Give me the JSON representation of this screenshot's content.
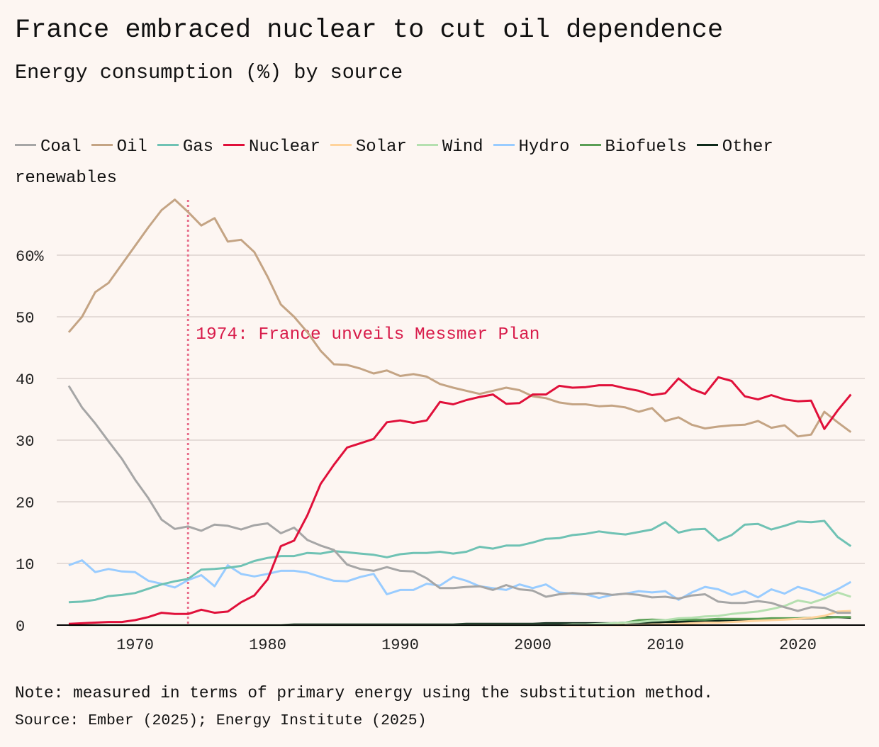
{
  "header": {
    "title": "France embraced nuclear to cut oil dependence",
    "subtitle": "Energy consumption (%) by source"
  },
  "footer": {
    "note": "Note: measured in terms of primary energy using the substitution method.",
    "source": "Source: Ember (2025); Energy Institute (2025)"
  },
  "chart_data": {
    "type": "line",
    "title": "France embraced nuclear to cut oil dependence",
    "subtitle": "Energy consumption (%) by source",
    "xlabel": "",
    "ylabel": "Energy consumption (%)",
    "xlim": [
      1965,
      2024
    ],
    "ylim": [
      0,
      70
    ],
    "grid": true,
    "legend_position": "top",
    "x_ticks": [
      1970,
      1980,
      1990,
      2000,
      2010,
      2020
    ],
    "x_tick_labels": [
      "1970",
      "1980",
      "1990",
      "2000",
      "2010",
      "2020"
    ],
    "y_ticks": [
      0,
      10,
      20,
      30,
      40,
      50,
      60
    ],
    "y_tick_labels": [
      "0",
      "10",
      "20",
      "30",
      "40",
      "50",
      "60%"
    ],
    "annotation": {
      "x": 1974,
      "text": "1974: France unveils Messmer Plan",
      "color": "#d81b4a",
      "line_color": "#e8718d"
    },
    "x_start": 1965,
    "series": [
      {
        "name": "Coal",
        "color": "#a6a6a6",
        "values": [
          38.8,
          35.3,
          32.7,
          29.8,
          27.0,
          23.6,
          20.6,
          17.1,
          15.6,
          16.0,
          15.3,
          16.3,
          16.1,
          15.5,
          16.2,
          16.5,
          14.9,
          15.8,
          13.8,
          12.9,
          12.2,
          9.8,
          9.1,
          8.8,
          9.4,
          8.8,
          8.7,
          7.6,
          6.0,
          6.0,
          6.2,
          6.3,
          5.7,
          6.5,
          5.8,
          5.6,
          4.6,
          5.0,
          5.2,
          5.0,
          5.2,
          4.9,
          5.1,
          4.9,
          4.5,
          4.6,
          4.3,
          4.8,
          5.0,
          3.8,
          3.6,
          3.6,
          3.9,
          3.6,
          2.9,
          2.3,
          2.9,
          2.8,
          2.0,
          2.0
        ]
      },
      {
        "name": "Oil",
        "color": "#c4a484",
        "values": [
          47.5,
          50.0,
          54.0,
          55.5,
          58.5,
          61.5,
          64.5,
          67.3,
          69.0,
          67.0,
          64.8,
          66.0,
          62.2,
          62.5,
          60.5,
          56.5,
          52.0,
          50.0,
          47.5,
          44.5,
          42.3,
          42.2,
          41.6,
          40.8,
          41.3,
          40.4,
          40.7,
          40.3,
          39.1,
          38.5,
          38.0,
          37.5,
          38.0,
          38.5,
          38.1,
          37.1,
          36.8,
          36.1,
          35.8,
          35.8,
          35.5,
          35.6,
          35.3,
          34.6,
          35.2,
          33.1,
          33.7,
          32.5,
          31.9,
          32.2,
          32.4,
          32.5,
          33.1,
          32.0,
          32.4,
          30.6,
          30.9,
          34.6,
          32.9,
          31.3
        ]
      },
      {
        "name": "Gas",
        "color": "#6fc2b4",
        "values": [
          3.7,
          3.8,
          4.1,
          4.7,
          4.9,
          5.2,
          5.9,
          6.6,
          7.1,
          7.5,
          9.0,
          9.1,
          9.3,
          9.6,
          10.4,
          10.9,
          11.2,
          11.2,
          11.7,
          11.6,
          12.0,
          11.8,
          11.6,
          11.4,
          11.0,
          11.5,
          11.7,
          11.7,
          11.9,
          11.6,
          11.9,
          12.7,
          12.4,
          12.9,
          12.9,
          13.4,
          14.0,
          14.1,
          14.6,
          14.8,
          15.2,
          14.9,
          14.7,
          15.1,
          15.5,
          16.7,
          15.0,
          15.5,
          15.6,
          13.7,
          14.6,
          16.3,
          16.4,
          15.5,
          16.1,
          16.8,
          16.7,
          16.9,
          14.3,
          12.8
        ]
      },
      {
        "name": "Nuclear",
        "color": "#e0103a",
        "values": [
          0.2,
          0.3,
          0.4,
          0.5,
          0.5,
          0.8,
          1.3,
          2.0,
          1.8,
          1.8,
          2.5,
          2.0,
          2.2,
          3.7,
          4.8,
          7.4,
          12.8,
          13.7,
          17.8,
          22.9,
          26.0,
          28.8,
          29.5,
          30.2,
          32.9,
          33.2,
          32.8,
          33.2,
          36.2,
          35.8,
          36.5,
          37.0,
          37.4,
          35.9,
          36.0,
          37.4,
          37.4,
          38.8,
          38.5,
          38.6,
          38.9,
          38.9,
          38.4,
          38.0,
          37.3,
          37.6,
          40.0,
          38.3,
          37.5,
          40.2,
          39.6,
          37.1,
          36.6,
          37.3,
          36.6,
          36.3,
          36.4,
          31.8,
          34.8,
          37.4
        ]
      },
      {
        "name": "Solar",
        "color": "#ffd39b",
        "values": [
          0,
          0,
          0,
          0,
          0,
          0,
          0,
          0,
          0,
          0,
          0,
          0,
          0,
          0,
          0,
          0,
          0,
          0,
          0,
          0,
          0,
          0,
          0,
          0,
          0,
          0,
          0,
          0,
          0,
          0,
          0,
          0,
          0,
          0,
          0,
          0,
          0,
          0,
          0,
          0,
          0,
          0,
          0,
          0,
          0.1,
          0.1,
          0.2,
          0.3,
          0.4,
          0.4,
          0.5,
          0.6,
          0.7,
          0.8,
          0.9,
          1.0,
          1.2,
          1.5,
          2.2,
          2.3
        ]
      },
      {
        "name": "Wind",
        "color": "#b5e0b0",
        "values": [
          0,
          0,
          0,
          0,
          0,
          0,
          0,
          0,
          0,
          0,
          0,
          0,
          0,
          0,
          0,
          0,
          0,
          0,
          0,
          0,
          0,
          0,
          0,
          0,
          0,
          0,
          0,
          0,
          0,
          0,
          0,
          0,
          0,
          0,
          0,
          0,
          0,
          0,
          0.1,
          0.1,
          0.2,
          0.3,
          0.4,
          0.5,
          0.7,
          0.8,
          1.1,
          1.2,
          1.4,
          1.5,
          1.8,
          2.0,
          2.2,
          2.6,
          3.1,
          4.0,
          3.6,
          4.3,
          5.3,
          4.6
        ]
      },
      {
        "name": "Hydro",
        "color": "#99ccff",
        "values": [
          9.7,
          10.5,
          8.6,
          9.1,
          8.7,
          8.6,
          7.2,
          6.7,
          6.1,
          7.3,
          8.1,
          6.3,
          9.7,
          8.3,
          7.9,
          8.3,
          8.8,
          8.8,
          8.5,
          7.8,
          7.2,
          7.1,
          7.8,
          8.3,
          5.0,
          5.7,
          5.7,
          6.7,
          6.4,
          7.8,
          7.2,
          6.3,
          6.0,
          5.7,
          6.6,
          6.0,
          6.6,
          5.3,
          5.1,
          5.0,
          4.4,
          4.9,
          5.1,
          5.5,
          5.3,
          5.5,
          4.1,
          5.3,
          6.2,
          5.8,
          4.9,
          5.5,
          4.5,
          5.8,
          5.1,
          6.2,
          5.6,
          4.8,
          5.8,
          7.0
        ]
      },
      {
        "name": "Biofuels",
        "color": "#5a9e55",
        "values": [
          0,
          0,
          0,
          0,
          0,
          0,
          0,
          0,
          0,
          0,
          0,
          0,
          0,
          0,
          0,
          0,
          0,
          0,
          0,
          0,
          0,
          0,
          0,
          0,
          0,
          0,
          0,
          0,
          0,
          0,
          0,
          0,
          0,
          0,
          0,
          0,
          0,
          0,
          0,
          0,
          0,
          0.1,
          0.4,
          0.8,
          0.9,
          0.8,
          0.9,
          0.9,
          0.9,
          1.0,
          1.0,
          1.0,
          1.0,
          1.1,
          1.1,
          1.1,
          1.2,
          1.2,
          1.3,
          1.3
        ]
      },
      {
        "name": "Other renewables",
        "color": "#0e2a1a",
        "values": [
          0,
          0,
          0,
          0,
          0,
          0,
          0,
          0,
          0,
          0,
          0,
          0,
          0,
          0,
          0,
          0,
          0,
          0.1,
          0.1,
          0.1,
          0.1,
          0.1,
          0.1,
          0.1,
          0.1,
          0.1,
          0.1,
          0.1,
          0.1,
          0.1,
          0.2,
          0.2,
          0.2,
          0.2,
          0.2,
          0.2,
          0.3,
          0.3,
          0.3,
          0.3,
          0.3,
          0.3,
          0.4,
          0.4,
          0.4,
          0.5,
          0.5,
          0.6,
          0.6,
          0.7,
          0.8,
          0.8,
          0.9,
          0.9,
          1.0,
          1.0,
          1.1,
          1.3,
          1.3,
          1.2
        ]
      }
    ]
  }
}
